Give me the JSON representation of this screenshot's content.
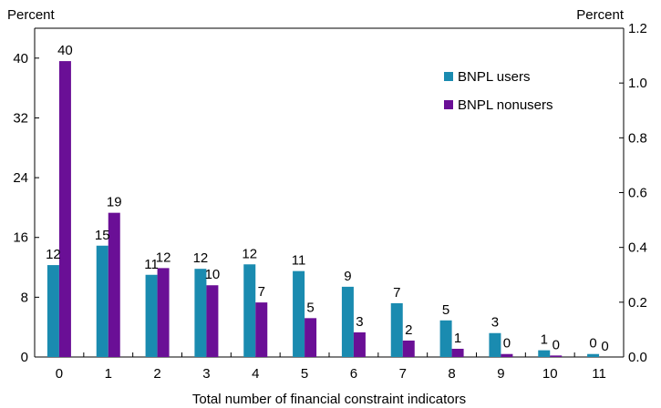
{
  "chart_data": {
    "type": "bar",
    "xlabel": "Total number of financial constraint indicators",
    "left_axis_unit": "Percent",
    "right_axis_unit": "Percent",
    "categories": [
      "0",
      "1",
      "2",
      "3",
      "4",
      "5",
      "6",
      "7",
      "8",
      "9",
      "10",
      "11"
    ],
    "series": [
      {
        "name": "BNPL users",
        "color": "#1a8bb0",
        "values": [
          12.3,
          14.9,
          11.0,
          11.8,
          12.4,
          11.5,
          9.4,
          7.2,
          4.9,
          3.2,
          0.9,
          0.4
        ],
        "labels": [
          "12",
          "15",
          "11",
          "12",
          "12",
          "11",
          "9",
          "7",
          "5",
          "3",
          "1",
          "0"
        ]
      },
      {
        "name": "BNPL nonusers",
        "color": "#6a0f96",
        "values": [
          39.6,
          19.3,
          11.9,
          9.6,
          7.3,
          5.2,
          3.3,
          2.2,
          1.1,
          0.4,
          0.2,
          0.0
        ],
        "labels": [
          "40",
          "19",
          "12",
          "10",
          "7",
          "5",
          "3",
          "2",
          "1",
          "0",
          "0",
          "0"
        ]
      }
    ],
    "ylim": [
      0,
      44
    ],
    "yticks": [
      "0",
      "8",
      "16",
      "24",
      "32",
      "40"
    ],
    "ytick_values": [
      0,
      8,
      16,
      24,
      32,
      40
    ],
    "y2lim": [
      0,
      1.2
    ],
    "y2ticks": [
      "0.0",
      "0.2",
      "0.4",
      "0.6",
      "0.8",
      "1.0",
      "1.2"
    ],
    "y2tick_values": [
      0,
      0.2,
      0.4,
      0.6,
      0.8,
      1.0,
      1.2
    ],
    "grid": false,
    "legend_position": "top-right"
  }
}
